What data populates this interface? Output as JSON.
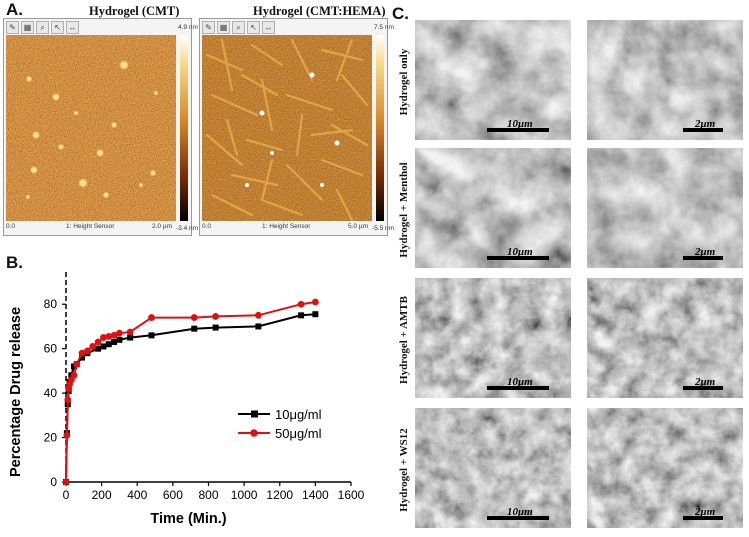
{
  "panels": {
    "a": {
      "letter": "A."
    },
    "b": {
      "letter": "B."
    },
    "c": {
      "letter": "C."
    }
  },
  "afm": [
    {
      "title": "Hydrogel (CMT)",
      "scale_max": "4.9 nm",
      "scale_min": "-3.4 nm",
      "x_start": "0.0",
      "x_end": "2.0 µm",
      "channel": "1: Height Sensor",
      "colors": [
        "#ffffff",
        "#d98b2b",
        "#000000"
      ]
    },
    {
      "title": "Hydrogel (CMT:HEMA)",
      "scale_max": "7.5 nm",
      "scale_min": "-5.5 nm",
      "x_start": "0.0",
      "x_end": "5.0 µm",
      "channel": "1: Height Sensor",
      "colors": [
        "#ffffff",
        "#d98b2b",
        "#000000"
      ]
    }
  ],
  "sem": {
    "rows": [
      "Hydrogel only",
      "Hydrogel + Menthol",
      "Hydrogel + AMTB",
      "Hydrogel + WS12"
    ],
    "scale_left": "10μm",
    "scale_right": "2μm"
  },
  "chart_data": {
    "type": "line",
    "title": "",
    "xlabel": "Time (Min.)",
    "ylabel": "Percentage Drug release",
    "xlim": [
      0,
      1600
    ],
    "ylim": [
      0,
      90
    ],
    "xticks": [
      0,
      200,
      400,
      600,
      800,
      1000,
      1200,
      1400,
      1600
    ],
    "yticks": [
      0,
      20,
      40,
      60,
      80
    ],
    "legend_position": "center-right",
    "series": [
      {
        "name": "10μg/ml",
        "color": "#000000",
        "marker": "square",
        "x": [
          0,
          5,
          10,
          15,
          20,
          30,
          45,
          60,
          90,
          120,
          180,
          210,
          240,
          270,
          300,
          360,
          480,
          720,
          840,
          1080,
          1320,
          1400
        ],
        "y": [
          0,
          22,
          35,
          41,
          45,
          48,
          52,
          53,
          56,
          58,
          60,
          61,
          62,
          63,
          64,
          65,
          66,
          69,
          69.5,
          70,
          75,
          75.5
        ]
      },
      {
        "name": "50μg/ml",
        "color": "#e01010",
        "marker": "circle",
        "x": [
          0,
          5,
          10,
          15,
          20,
          30,
          45,
          60,
          90,
          120,
          150,
          180,
          210,
          240,
          270,
          300,
          360,
          480,
          720,
          840,
          1080,
          1320,
          1400
        ],
        "y": [
          0,
          21,
          37,
          42,
          44,
          46,
          48,
          53,
          58,
          59,
          61,
          63,
          65,
          65.5,
          66,
          67,
          67.5,
          74,
          74,
          74.5,
          75,
          80,
          81
        ]
      }
    ]
  }
}
